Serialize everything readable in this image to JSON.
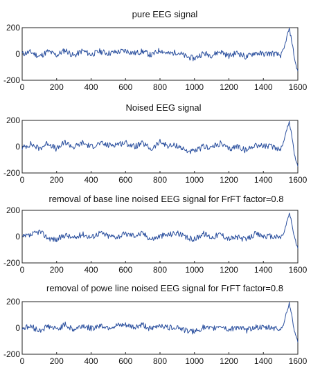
{
  "colors": {
    "line": "#2a4f9e",
    "axis": "#222222"
  },
  "chart_data": [
    {
      "type": "line",
      "title": "pure EEG signal",
      "xlabel": "",
      "ylabel": "",
      "xlim": [
        0,
        1600
      ],
      "ylim": [
        -200,
        200
      ],
      "xticks": [
        0,
        200,
        400,
        600,
        800,
        1000,
        1200,
        1400,
        1600
      ],
      "yticks": [
        200,
        0,
        -200
      ],
      "grid": false,
      "x": [
        0,
        50,
        100,
        150,
        200,
        250,
        300,
        350,
        400,
        450,
        500,
        550,
        600,
        650,
        700,
        750,
        800,
        850,
        900,
        950,
        1000,
        1050,
        1100,
        1150,
        1200,
        1250,
        1300,
        1350,
        1400,
        1450,
        1500,
        1520,
        1540,
        1550,
        1560,
        1570,
        1580,
        1590,
        1600
      ],
      "values": [
        0,
        15,
        -20,
        20,
        -10,
        30,
        -15,
        25,
        -5,
        20,
        5,
        15,
        25,
        5,
        20,
        -10,
        30,
        0,
        15,
        -20,
        -35,
        5,
        -10,
        20,
        -15,
        10,
        -25,
        10,
        0,
        5,
        -10,
        40,
        150,
        190,
        130,
        60,
        -30,
        -90,
        -130
      ]
    },
    {
      "type": "line",
      "title": "Noised EEG signal",
      "xlabel": "",
      "ylabel": "",
      "xlim": [
        0,
        1600
      ],
      "ylim": [
        -200,
        200
      ],
      "xticks": [
        0,
        200,
        400,
        600,
        800,
        1000,
        1200,
        1400,
        1600
      ],
      "yticks": [
        200,
        0,
        -200
      ],
      "grid": false,
      "x": [
        0,
        50,
        100,
        150,
        200,
        250,
        300,
        350,
        400,
        450,
        500,
        550,
        600,
        650,
        700,
        750,
        800,
        850,
        900,
        950,
        1000,
        1050,
        1100,
        1150,
        1200,
        1250,
        1300,
        1350,
        1400,
        1450,
        1500,
        1520,
        1540,
        1550,
        1560,
        1570,
        1580,
        1590,
        1600
      ],
      "values": [
        -10,
        20,
        -15,
        30,
        -20,
        35,
        -5,
        30,
        0,
        25,
        10,
        20,
        30,
        0,
        25,
        -20,
        35,
        5,
        10,
        -30,
        -40,
        0,
        -5,
        25,
        -20,
        5,
        -30,
        15,
        5,
        0,
        -15,
        45,
        155,
        185,
        120,
        40,
        -50,
        -110,
        -150
      ]
    },
    {
      "type": "line",
      "title": "removal of base line noised EEG signal for FrFT factor=0.8",
      "xlabel": "",
      "ylabel": "",
      "xlim": [
        0,
        1600
      ],
      "ylim": [
        -200,
        200
      ],
      "xticks": [
        0,
        200,
        400,
        600,
        800,
        1000,
        1200,
        1400,
        1600
      ],
      "yticks": [
        200,
        0,
        -200
      ],
      "grid": false,
      "x": [
        0,
        50,
        100,
        150,
        200,
        250,
        300,
        350,
        400,
        450,
        500,
        550,
        600,
        650,
        700,
        750,
        800,
        850,
        900,
        950,
        1000,
        1050,
        1100,
        1150,
        1200,
        1250,
        1300,
        1350,
        1400,
        1450,
        1500,
        1520,
        1540,
        1550,
        1560,
        1570,
        1580,
        1590,
        1600
      ],
      "values": [
        -5,
        10,
        40,
        -10,
        -25,
        15,
        -15,
        20,
        -5,
        30,
        5,
        0,
        20,
        10,
        25,
        -20,
        5,
        15,
        30,
        -10,
        -20,
        25,
        -5,
        20,
        -15,
        -5,
        -25,
        20,
        5,
        0,
        -5,
        30,
        130,
        170,
        140,
        60,
        0,
        -50,
        -90
      ]
    },
    {
      "type": "line",
      "title": "removal of powe line noised EEG signal for FrFT factor=0.8",
      "xlabel": "",
      "ylabel": "",
      "xlim": [
        0,
        1600
      ],
      "ylim": [
        -200,
        200
      ],
      "xticks": [
        0,
        200,
        400,
        600,
        800,
        1000,
        1200,
        1400,
        1600
      ],
      "yticks": [
        200,
        0,
        -200
      ],
      "grid": false,
      "x": [
        0,
        50,
        100,
        150,
        200,
        250,
        300,
        350,
        400,
        450,
        500,
        550,
        600,
        650,
        700,
        750,
        800,
        850,
        900,
        950,
        1000,
        1050,
        1100,
        1150,
        1200,
        1250,
        1300,
        1350,
        1400,
        1450,
        1500,
        1520,
        1540,
        1550,
        1560,
        1570,
        1580,
        1590,
        1600
      ],
      "values": [
        0,
        10,
        -20,
        15,
        -10,
        25,
        -15,
        20,
        -5,
        20,
        5,
        15,
        20,
        5,
        25,
        -10,
        25,
        0,
        10,
        -20,
        -30,
        5,
        -10,
        20,
        -15,
        10,
        -20,
        10,
        0,
        5,
        -10,
        40,
        145,
        185,
        130,
        55,
        -20,
        -70,
        -110
      ]
    }
  ]
}
